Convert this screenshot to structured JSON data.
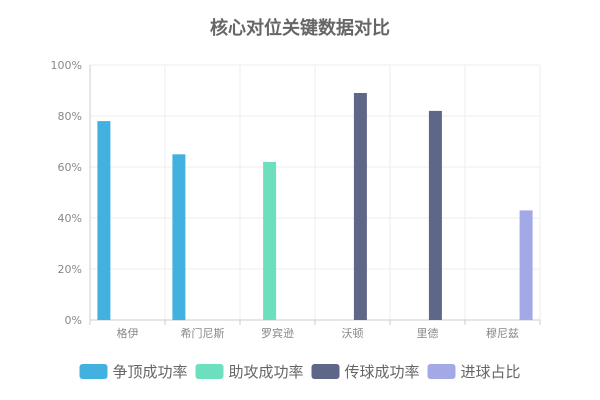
{
  "chart_data": {
    "type": "bar",
    "title": "核心对位关键数据对比",
    "categories": [
      "格伊",
      "希门尼斯",
      "罗宾逊",
      "沃顿",
      "里德",
      "穆尼兹"
    ],
    "ylim": [
      0,
      100
    ],
    "y_tick_labels": [
      "0%",
      "20%",
      "40%",
      "60%",
      "80%",
      "100%"
    ],
    "y_ticks": [
      0,
      20,
      40,
      60,
      80,
      100
    ],
    "grid": true,
    "legend_position": "bottom",
    "series": [
      {
        "name": "争顶成功率",
        "color": "#42b1e0",
        "values": [
          78,
          65,
          null,
          null,
          null,
          null
        ]
      },
      {
        "name": "助攻成功率",
        "color": "#6ce0be",
        "values": [
          null,
          null,
          62,
          null,
          null,
          null
        ]
      },
      {
        "name": "传球成功率",
        "color": "#5f6788",
        "values": [
          null,
          null,
          null,
          89,
          82,
          null
        ]
      },
      {
        "name": "进球占比",
        "color": "#a3a8e6",
        "values": [
          null,
          null,
          null,
          null,
          null,
          43
        ]
      }
    ]
  }
}
